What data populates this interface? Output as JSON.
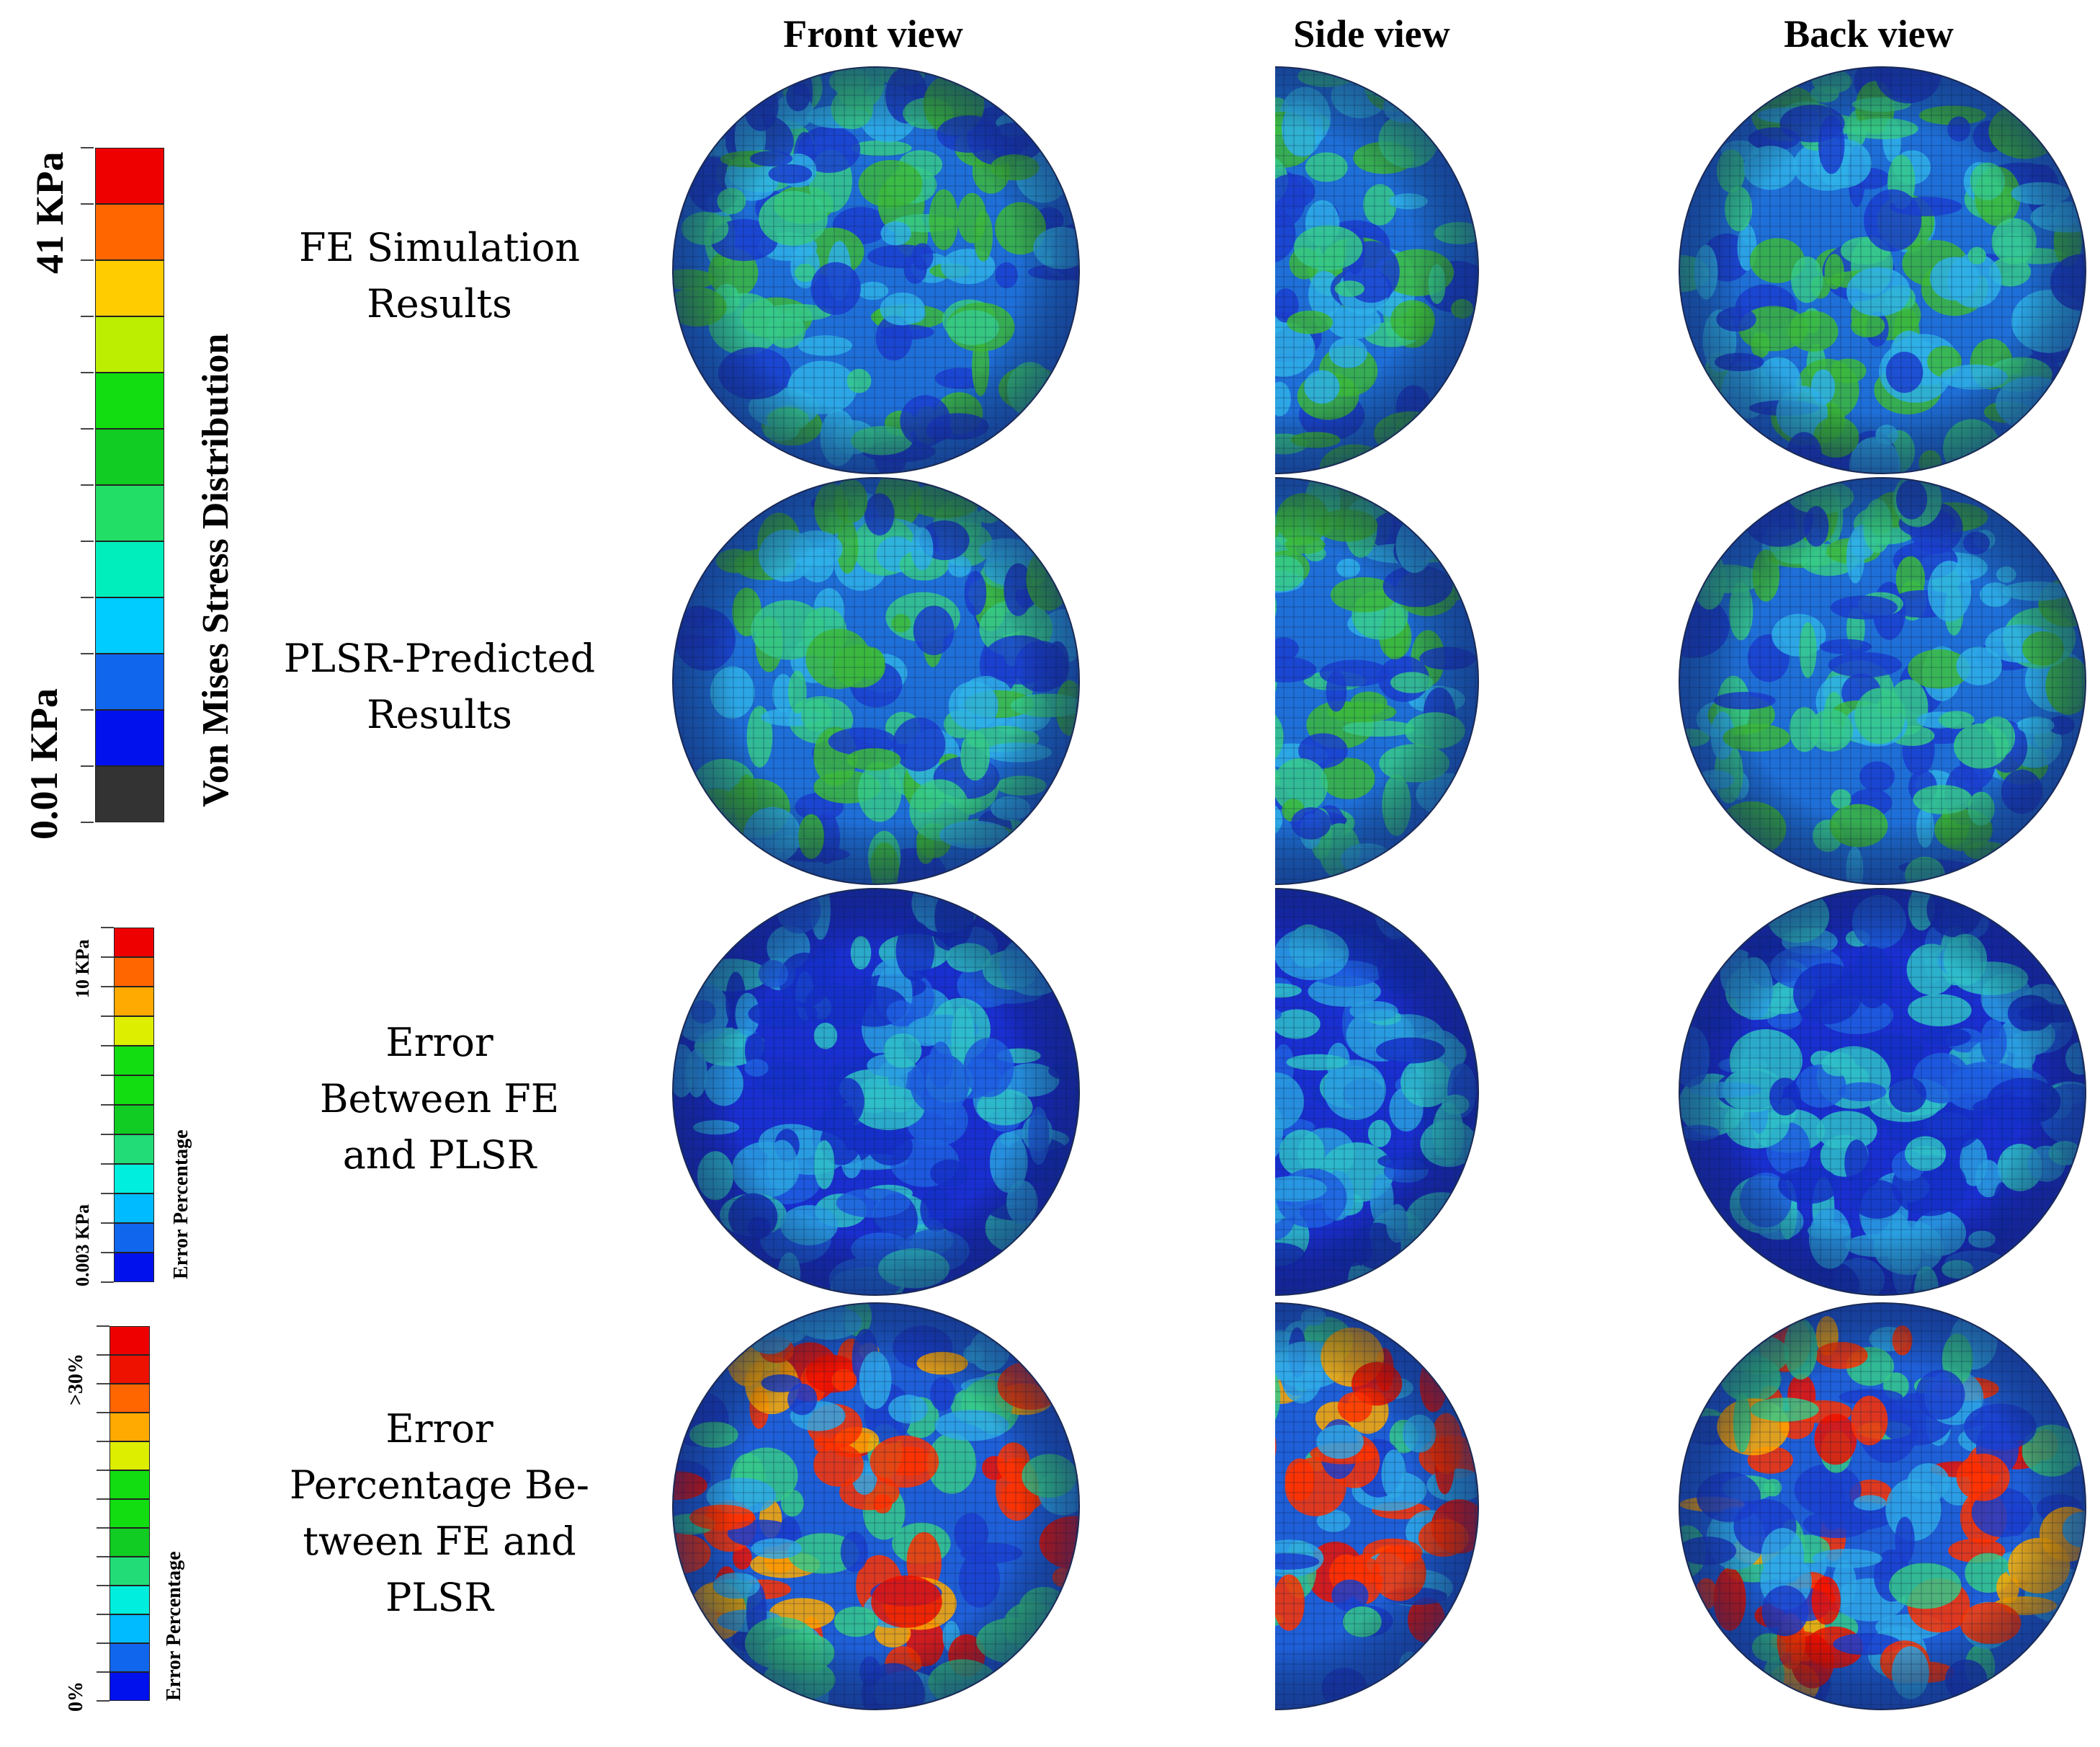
{
  "headers": {
    "front": "Front view",
    "side": "Side view",
    "back": "Back view"
  },
  "legend_main": {
    "max_label": "41 KPa",
    "min_label": "0.01 KPa",
    "title": "Von Mises Stress Distribution",
    "colors": [
      "#ee0000",
      "#ff6600",
      "#ffcc00",
      "#bbee00",
      "#11dd11",
      "#11cc22",
      "#22dd66",
      "#00eebb",
      "#00ccff",
      "#1166ee",
      "#0011ee",
      "#333333"
    ]
  },
  "legend_error": {
    "max_label": "10 KPa",
    "min_label": "0.003 KPa",
    "title": "Error  Percentage",
    "colors": [
      "#ee0000",
      "#ff6600",
      "#ffaa00",
      "#ddee00",
      "#11dd11",
      "#11dd11",
      "#11cc22",
      "#22dd77",
      "#00eedd",
      "#00bbff",
      "#1166ee",
      "#0011ee"
    ]
  },
  "legend_percent": {
    "max_label": ">30%",
    "min_label": "0%",
    "title": "Error  Percentage",
    "colors": [
      "#ee0000",
      "#ee1100",
      "#ff6600",
      "#ffaa00",
      "#ddee00",
      "#11dd11",
      "#11dd11",
      "#11cc22",
      "#22dd77",
      "#00eedd",
      "#00bbff",
      "#1166ee",
      "#0011ee"
    ]
  },
  "rows": [
    {
      "lines": [
        "FE Simulation",
        "Results"
      ]
    },
    {
      "lines": [
        "PLSR-Predicted",
        "Results"
      ]
    },
    {
      "lines": [
        "Error",
        "Between FE",
        "and PLSR"
      ]
    },
    {
      "lines": [
        "Error",
        "Percentage Be-",
        "tween FE and",
        "PLSR"
      ]
    }
  ],
  "sphere_palettes": {
    "fe": [
      "#1f6fd8",
      "#2fb0e8",
      "#36c98a",
      "#3cb83c",
      "#1b3fd0"
    ],
    "plsr": [
      "#1f6fd8",
      "#2fb0e8",
      "#36c98a",
      "#3cb83c",
      "#1b3fd0"
    ],
    "error": [
      "#1a2fd0",
      "#1f5fe0",
      "#2a9fe0",
      "#2fc0c8",
      "#1530c8"
    ],
    "percent": [
      "#1f5fd8",
      "#2fa8e8",
      "#36c98a",
      "#ff3300",
      "#1b3fd0"
    ]
  }
}
